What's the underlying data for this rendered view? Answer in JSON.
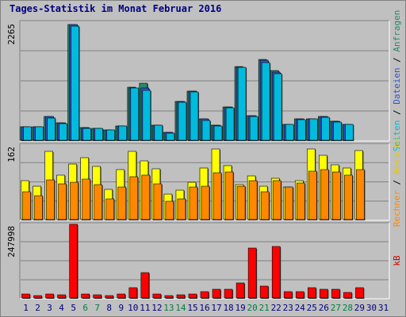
{
  "chart_data": {
    "type": "bar",
    "title": "Tages-Statistik im Monat Februar 2016",
    "categories": [
      "1",
      "2",
      "3",
      "4",
      "5",
      "6",
      "7",
      "8",
      "9",
      "10",
      "11",
      "12",
      "13",
      "14",
      "15",
      "16",
      "17",
      "18",
      "19",
      "20",
      "21",
      "22",
      "23",
      "24",
      "25",
      "26",
      "27",
      "28",
      "29",
      "30",
      "31"
    ],
    "weekend_days": [
      "6",
      "7",
      "13",
      "14",
      "20",
      "21",
      "27",
      "28"
    ],
    "panels": [
      {
        "id": "top",
        "max_label": "2265",
        "ymax": 2265,
        "right_label": [
          {
            "text": "Seiten",
            "color": "#00bbdd"
          },
          {
            "text": " / ",
            "color": "#000000"
          },
          {
            "text": "Dateien",
            "color": "#3355cc"
          },
          {
            "text": " / ",
            "color": "#000000"
          },
          {
            "text": "Anfragen",
            "color": "#2a8866"
          }
        ],
        "series": [
          {
            "name": "Anfragen",
            "color": "#2a8866",
            "values": [
              255,
              255,
              450,
              335,
              2210,
              235,
              225,
              195,
              275,
              1010,
              1080,
              285,
              145,
              740,
              930,
              410,
              285,
              635,
              1410,
              470,
              1535,
              1330,
              300,
              405,
              415,
              450,
              355,
              300,
              null,
              null,
              null
            ]
          },
          {
            "name": "Dateien",
            "color": "#3355cc",
            "values": [
              255,
              255,
              450,
              335,
              2200,
              235,
              225,
              195,
              275,
              1000,
              1000,
              285,
              145,
              740,
              930,
              410,
              285,
              635,
              1395,
              470,
              1520,
              1300,
              300,
              405,
              415,
              450,
              355,
              300,
              null,
              null,
              null
            ]
          },
          {
            "name": "Seiten",
            "color": "#00bbdd",
            "values": [
              250,
              250,
              425,
              310,
              2175,
              225,
              225,
              190,
              270,
              990,
              950,
              280,
              140,
              730,
              920,
              385,
              275,
              620,
              1385,
              455,
              1485,
              1270,
              295,
              400,
              405,
              445,
              340,
              295,
              null,
              null,
              null
            ]
          }
        ]
      },
      {
        "id": "middle",
        "max_label": "162",
        "ymax": 162,
        "right_label": [
          {
            "text": "Rechner",
            "color": "#ff8800"
          },
          {
            "text": " / ",
            "color": "#000000"
          },
          {
            "text": "Besuche",
            "color": "#e8c800"
          }
        ],
        "series": [
          {
            "name": "Besuche",
            "color": "#ffff00",
            "values": [
              84,
              72,
              146,
              95,
              119,
              133,
              114,
              65,
              108,
              146,
              127,
              109,
              55,
              63,
              80,
              110,
              152,
              116,
              75,
              94,
              72,
              88,
              70,
              84,
              152,
              138,
              118,
              110,
              148,
              null,
              null
            ]
          },
          {
            "name": "Rechner",
            "color": "#ff8800",
            "values": [
              60,
              52,
              85,
              77,
              80,
              87,
              75,
              45,
              70,
              92,
              95,
              77,
              40,
              45,
              70,
              72,
              101,
              103,
              72,
              84,
              60,
              83,
              70,
              78,
              104,
              108,
              102,
              95,
              108,
              null,
              null
            ]
          }
        ]
      },
      {
        "id": "bottom",
        "max_label": "247998",
        "ymax": 247998,
        "right_label": [
          {
            "text": "kB",
            "color": "#cc0000"
          }
        ],
        "series": [
          {
            "name": "kB",
            "color": "#ff0000",
            "values": [
              14000,
              9000,
              13000,
              10000,
              245000,
              13500,
              10000,
              9000,
              14000,
              34000,
              85000,
              14000,
              8000,
              10000,
              14000,
              20000,
              29000,
              28000,
              51000,
              167000,
              39000,
              171000,
              21000,
              22000,
              34000,
              28000,
              30000,
              19000,
              33000,
              null,
              null
            ]
          }
        ]
      }
    ]
  },
  "colors": {
    "background": "#c0c0c0",
    "panel_border_dark": "#808080",
    "gridline": "#808080",
    "title": "#000080",
    "weekday_tick": "#000080",
    "weekend_tick": "#008040"
  }
}
